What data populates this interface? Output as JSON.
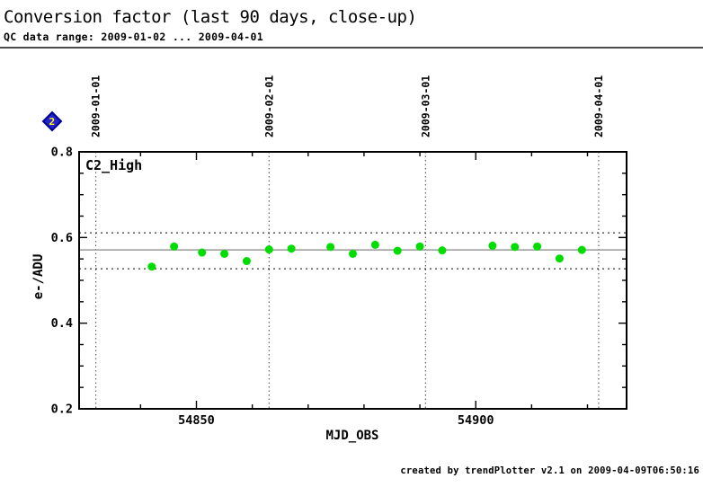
{
  "header": {
    "title": "Conversion factor (last 90 days, close-up)",
    "subtitle": "QC data range: 2009-01-02 ... 2009-04-01"
  },
  "badge": {
    "label": "2",
    "bg_color": "#2323d0",
    "text_color": "#ffff00"
  },
  "footer": {
    "credit": "created by trendPlotter v2.1 on 2009-04-09T06:50:16"
  },
  "chart_data": {
    "type": "scatter",
    "series_label": "C2_High",
    "xlabel": "MJD_OBS",
    "ylabel": "e-/ADU",
    "xlim": [
      54829,
      54927
    ],
    "ylim": [
      0.2,
      0.8
    ],
    "x_major_ticks": [
      54850,
      54900
    ],
    "x_minor_tick_step": 10,
    "y_major_ticks": [
      0.2,
      0.4,
      0.6,
      0.8
    ],
    "y_minor_tick_step": 0.05,
    "top_axis_marks": [
      {
        "label": "2009-01-01",
        "mjd": 54832
      },
      {
        "label": "2009-02-01",
        "mjd": 54863
      },
      {
        "label": "2009-03-01",
        "mjd": 54891
      },
      {
        "label": "2009-04-01",
        "mjd": 54922
      }
    ],
    "mean_line": 0.571,
    "upper_limit": 0.611,
    "lower_limit": 0.527,
    "point_color": "#00dd00",
    "mean_line_color": "#999999",
    "points": [
      {
        "mjd": 54842,
        "value": 0.532
      },
      {
        "mjd": 54846,
        "value": 0.579
      },
      {
        "mjd": 54851,
        "value": 0.565
      },
      {
        "mjd": 54855,
        "value": 0.562
      },
      {
        "mjd": 54859,
        "value": 0.545
      },
      {
        "mjd": 54863,
        "value": 0.572
      },
      {
        "mjd": 54867,
        "value": 0.574
      },
      {
        "mjd": 54874,
        "value": 0.578
      },
      {
        "mjd": 54878,
        "value": 0.562
      },
      {
        "mjd": 54882,
        "value": 0.583
      },
      {
        "mjd": 54886,
        "value": 0.569
      },
      {
        "mjd": 54890,
        "value": 0.579
      },
      {
        "mjd": 54894,
        "value": 0.57
      },
      {
        "mjd": 54903,
        "value": 0.581
      },
      {
        "mjd": 54907,
        "value": 0.578
      },
      {
        "mjd": 54911,
        "value": 0.579
      },
      {
        "mjd": 54915,
        "value": 0.551
      },
      {
        "mjd": 54919,
        "value": 0.571
      }
    ]
  }
}
